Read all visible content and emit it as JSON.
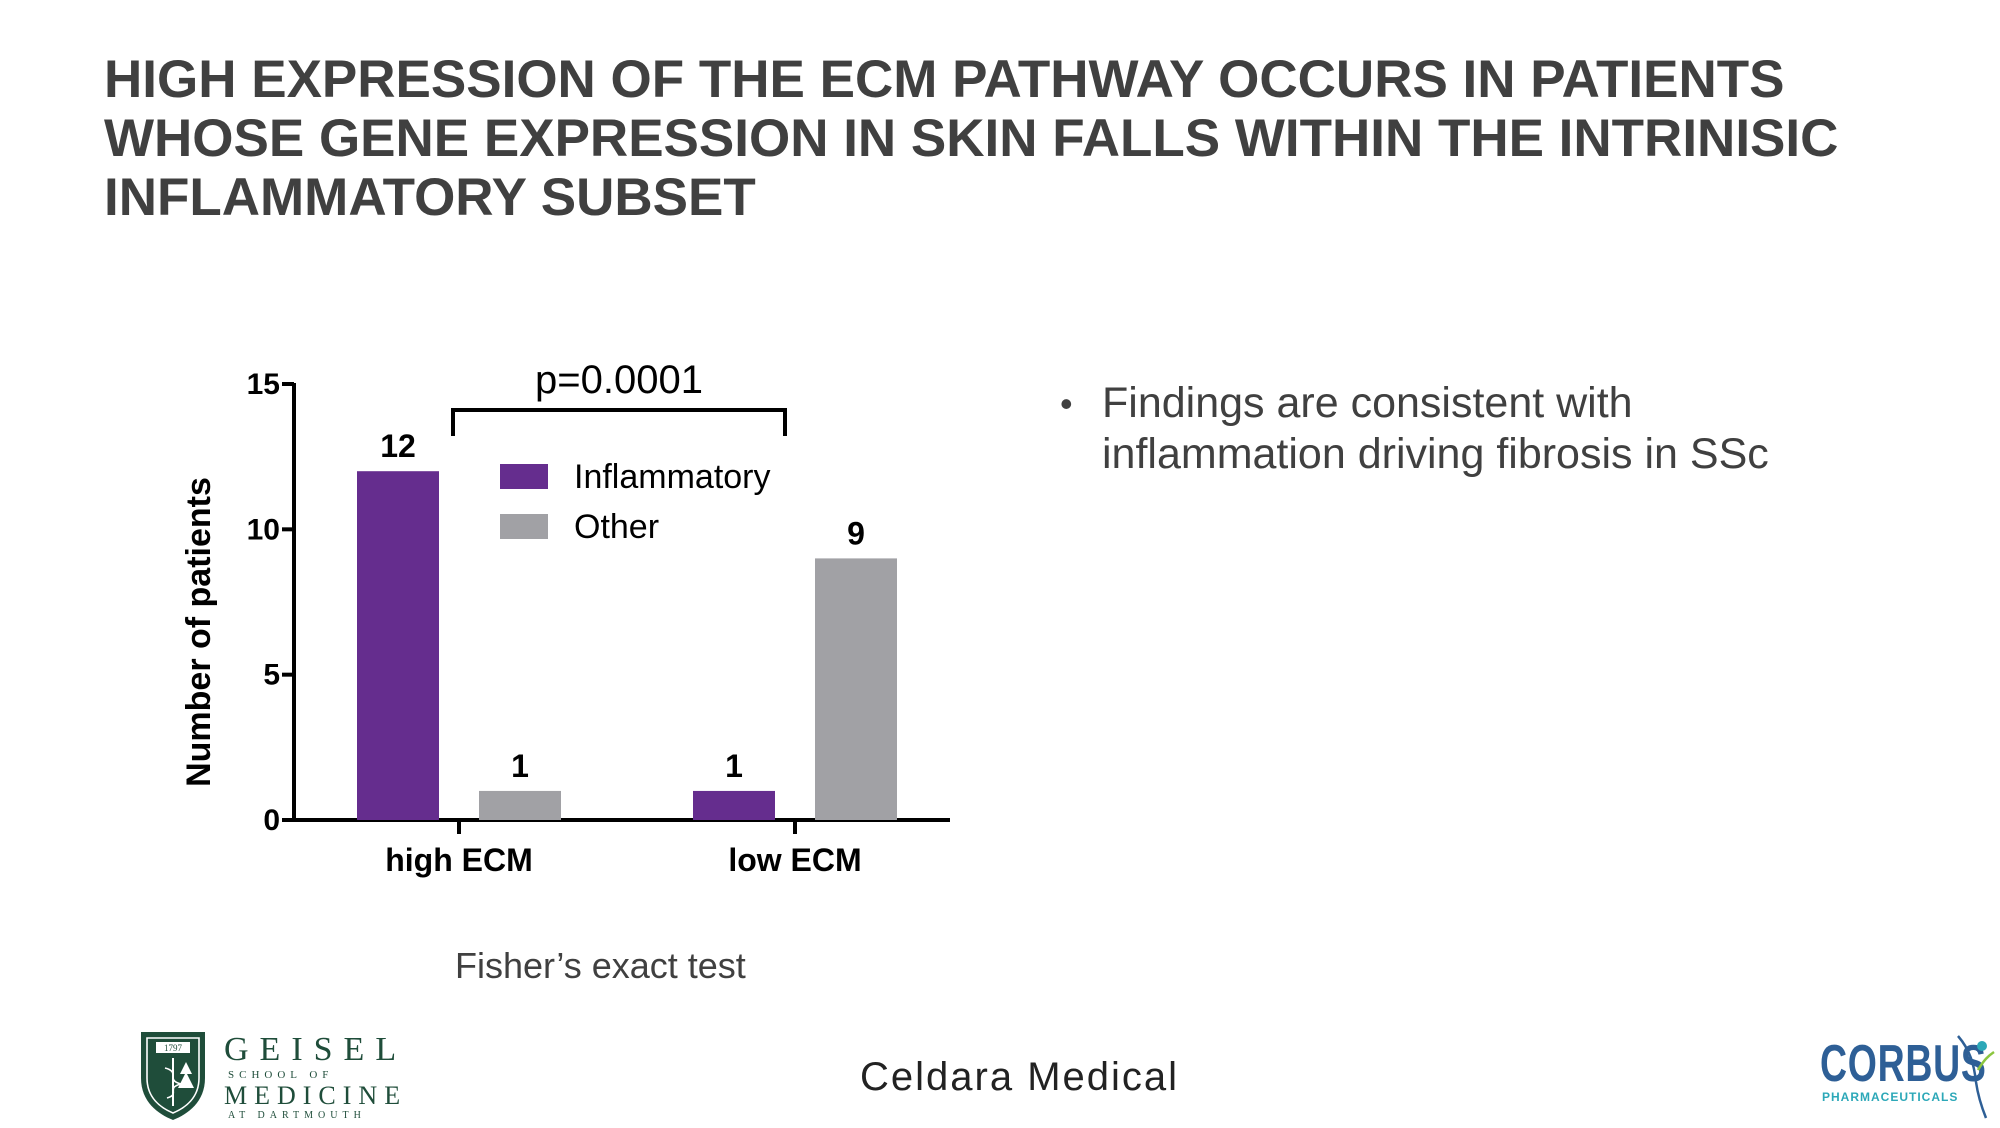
{
  "slide": {
    "title_lines": [
      "HIGH EXPRESSION OF THE ECM PATHWAY OCCURS IN PATIENTS",
      "WHOSE GENE EXPRESSION IN SKIN FALLS WITHIN THE INTRINISIC",
      "INFLAMMATORY SUBSET"
    ],
    "bullets": [
      {
        "lines": [
          "Findings are consistent with",
          "inflammation driving fibrosis in SSc"
        ]
      }
    ],
    "footnote": "Fisher’s exact test"
  },
  "chart_data": {
    "type": "bar",
    "title": "",
    "xlabel": "",
    "ylabel": "Number of patients",
    "categories": [
      "high ECM",
      "low ECM"
    ],
    "series": [
      {
        "name": "Inflammatory",
        "color": "#652d8e",
        "values": [
          12,
          1
        ]
      },
      {
        "name": "Other",
        "color": "#a1a1a5",
        "values": [
          1,
          9
        ]
      }
    ],
    "ylim": [
      0,
      15
    ],
    "yticks": [
      0,
      5,
      10,
      15
    ],
    "data_labels": true,
    "legend": "top-center",
    "grid": false,
    "annotation": "p=0.0001"
  },
  "footer": {
    "geisel": {
      "year": "1797",
      "line1": "GEISEL",
      "line2": "SCHOOL OF",
      "line3": "MEDICINE",
      "line4": "AT DARTMOUTH"
    },
    "celdara": "Celdara Medical",
    "corbus": {
      "name": "CORBUS",
      "sub": "PHARMACEUTICALS"
    }
  }
}
